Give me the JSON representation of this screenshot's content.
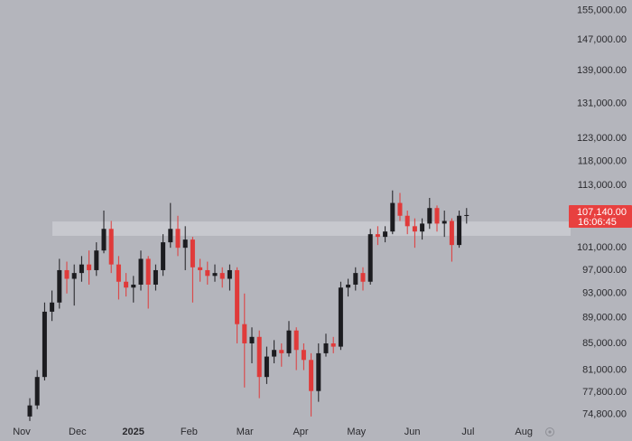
{
  "chart_data": {
    "type": "candlestick",
    "x_labels": [
      "Nov",
      "Dec",
      "2025",
      "Feb",
      "Mar",
      "Apr",
      "May",
      "Jun",
      "Jul",
      "Aug"
    ],
    "open": [
      74500,
      76000,
      80000,
      90000,
      91500,
      97000,
      95500,
      96500,
      98000,
      97000,
      100500,
      104500,
      98000,
      95000,
      94000,
      94500,
      99000,
      94500,
      97000,
      102000,
      104500,
      101000,
      102500,
      97500,
      97000,
      96000,
      96500,
      95500,
      97000,
      88000,
      85000,
      86000,
      80000,
      83000,
      84000,
      83500,
      87000,
      84000,
      82500,
      78000,
      83500,
      85000,
      84500,
      94000,
      94500,
      96500,
      95000,
      103500,
      103000,
      104000,
      109500,
      107000,
      105000,
      104000,
      105500,
      108500,
      105500,
      106000,
      101500,
      107000
    ],
    "high": [
      77000,
      81000,
      91500,
      93500,
      99000,
      98500,
      98000,
      99500,
      100500,
      102000,
      108000,
      106000,
      99500,
      96500,
      96000,
      100500,
      99500,
      98000,
      103500,
      109500,
      107000,
      105000,
      103000,
      99000,
      98500,
      98000,
      97500,
      98000,
      97500,
      93000,
      87500,
      87000,
      84500,
      85500,
      85000,
      88500,
      87500,
      85000,
      83500,
      85000,
      86500,
      86000,
      95000,
      95500,
      97500,
      97500,
      104500,
      105000,
      105000,
      112000,
      111500,
      108000,
      106500,
      106500,
      110500,
      109000,
      108000,
      106500,
      108000,
      108500
    ],
    "low": [
      73900,
      75500,
      79500,
      88500,
      90500,
      93000,
      91000,
      95000,
      94500,
      96000,
      100000,
      96500,
      92000,
      92500,
      91500,
      93500,
      90500,
      93500,
      96000,
      101000,
      99500,
      97000,
      91500,
      95000,
      94500,
      95000,
      94000,
      93500,
      85000,
      78500,
      82000,
      77000,
      79000,
      82000,
      81500,
      83000,
      81000,
      81000,
      74500,
      76500,
      83000,
      83500,
      84000,
      92500,
      93500,
      93500,
      94500,
      101500,
      102000,
      103500,
      106000,
      103500,
      101000,
      102500,
      104500,
      104000,
      103000,
      98500,
      101000,
      105500
    ],
    "close": [
      76000,
      80000,
      90000,
      91500,
      97000,
      95500,
      96500,
      98000,
      97000,
      100500,
      104500,
      98000,
      95000,
      94000,
      94500,
      99000,
      94500,
      97000,
      102000,
      104500,
      101000,
      102500,
      97500,
      97000,
      96000,
      96500,
      95500,
      97000,
      88000,
      85000,
      86000,
      80000,
      83000,
      84000,
      83500,
      87000,
      84000,
      82500,
      78000,
      83500,
      85000,
      84500,
      94000,
      94500,
      96500,
      95000,
      103500,
      103000,
      104000,
      109500,
      107000,
      105000,
      104000,
      105500,
      108500,
      105500,
      106000,
      101500,
      107000,
      107140
    ],
    "up_color": "#1c1c20",
    "down_color": "#e03a3a",
    "log_scale": true,
    "ylim": [
      73400,
      157900
    ],
    "yticks": [
      {
        "value": 155000,
        "label": "155,000.00"
      },
      {
        "value": 147000,
        "label": "147,000.00"
      },
      {
        "value": 139000,
        "label": "139,000.00"
      },
      {
        "value": 131000,
        "label": "131,000.00"
      },
      {
        "value": 123000,
        "label": "123,000.00"
      },
      {
        "value": 118000,
        "label": "118,000.00"
      },
      {
        "value": 113000,
        "label": "113,000.00"
      },
      {
        "value": 101000,
        "label": "101,000.00"
      },
      {
        "value": 97000,
        "label": "97,000.00"
      },
      {
        "value": 93000,
        "label": "93,000.00"
      },
      {
        "value": 89000,
        "label": "89,000.00"
      },
      {
        "value": 85000,
        "label": "85,000.00"
      },
      {
        "value": 81000,
        "label": "81,000.00"
      },
      {
        "value": 77800,
        "label": "77,800.00"
      },
      {
        "value": 74800,
        "label": "74,800.00"
      }
    ],
    "last_price": {
      "value": 107140,
      "label": "107,140.00"
    },
    "countdown": "16:06:45",
    "price_label_color": "#e8403f",
    "zone": [
      103200,
      105900
    ],
    "zone_color": "#cacbd1"
  }
}
